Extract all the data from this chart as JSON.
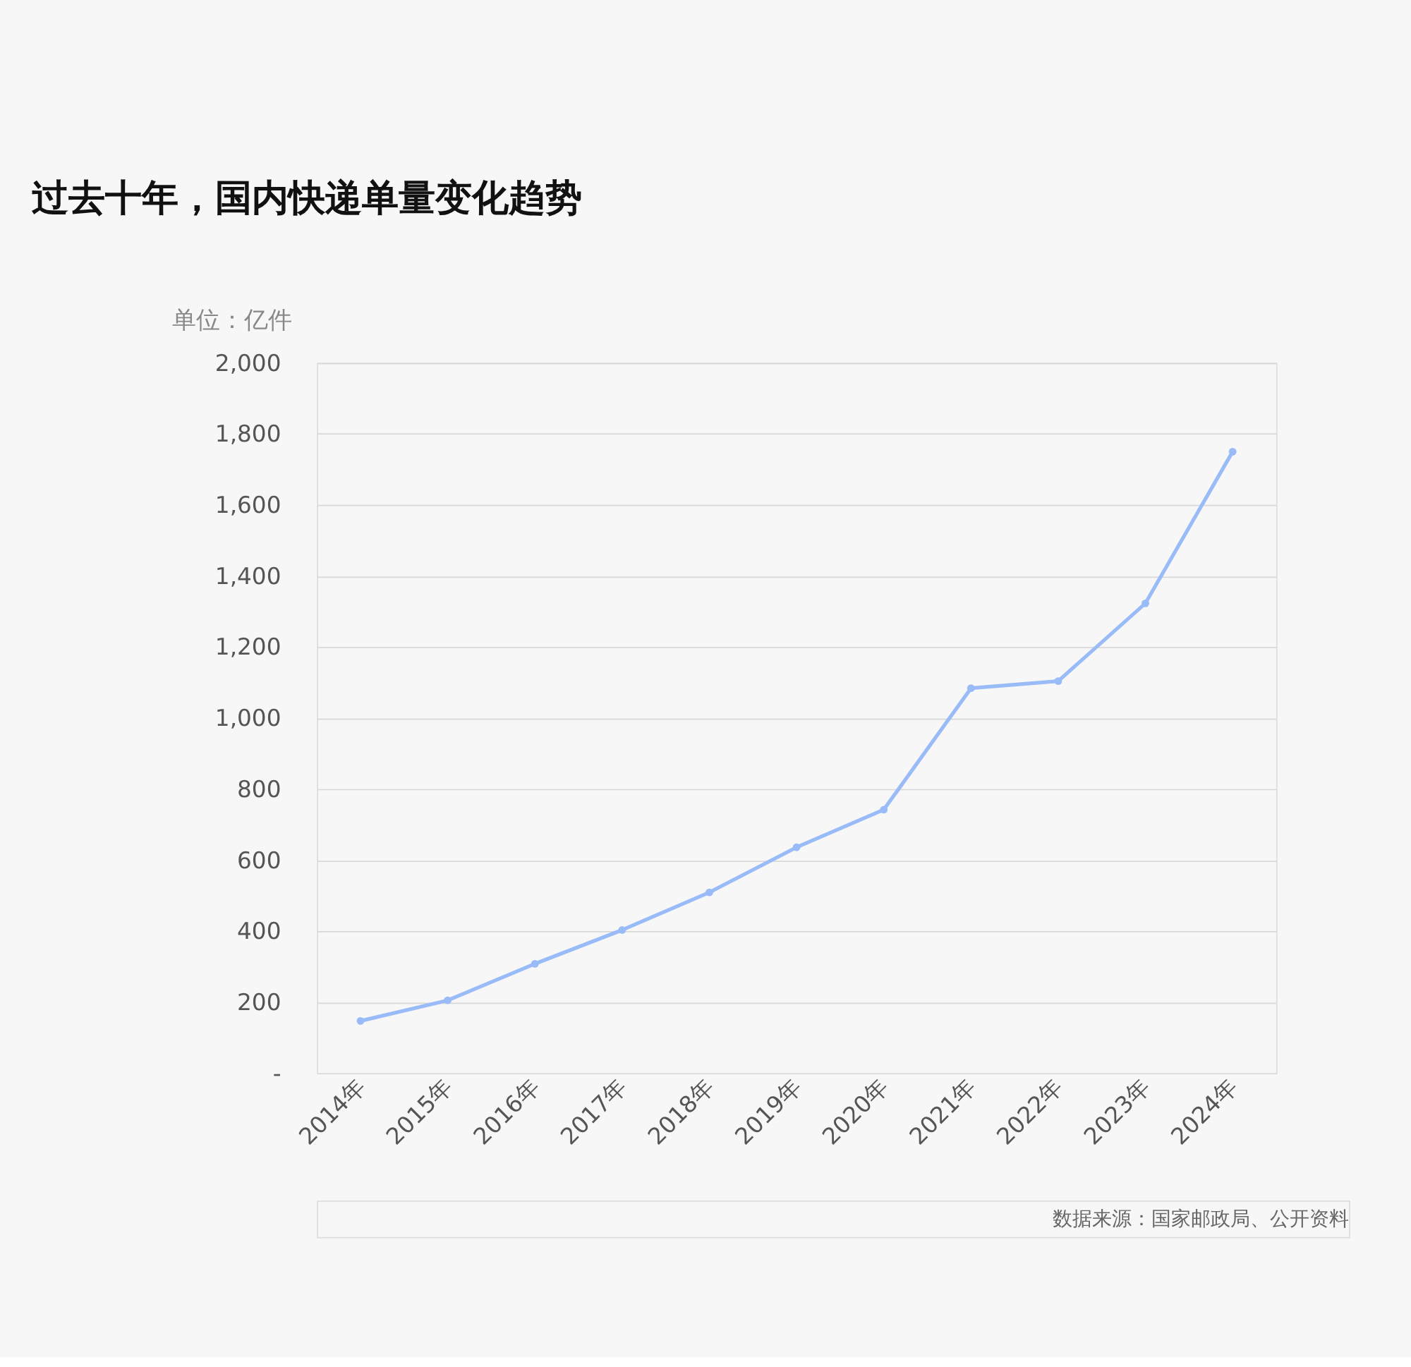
{
  "chart_data": {
    "type": "line",
    "title": "过去十年，国内快递单量变化趋势",
    "ylabel": "单位：亿件",
    "categories": [
      "2014年",
      "2015年",
      "2016年",
      "2017年",
      "2018年",
      "2019年",
      "2020年",
      "2021年",
      "2022年",
      "2023年",
      "2024年"
    ],
    "series": [
      {
        "color": "#99bbf8",
        "values": [
          147,
          205,
          308,
          403,
          509,
          636,
          742,
          1084,
          1104,
          1323,
          1750
        ]
      }
    ],
    "ylim": [
      0,
      2000
    ],
    "yticks": [
      {
        "value": 0,
        "label": "-"
      },
      {
        "value": 200,
        "label": "200"
      },
      {
        "value": 400,
        "label": "400"
      },
      {
        "value": 600,
        "label": "600"
      },
      {
        "value": 800,
        "label": "800"
      },
      {
        "value": 1000,
        "label": "1,000"
      },
      {
        "value": 1200,
        "label": "1,200"
      },
      {
        "value": 1400,
        "label": "1,400"
      },
      {
        "value": 1600,
        "label": "1,600"
      },
      {
        "value": 1800,
        "label": "1,800"
      },
      {
        "value": 2000,
        "label": "2,000"
      }
    ],
    "grid": "y",
    "marker": "circle",
    "line_style": "solid",
    "legend": false,
    "annotations": [
      "数据来源：国家邮政局、公开资料"
    ]
  }
}
